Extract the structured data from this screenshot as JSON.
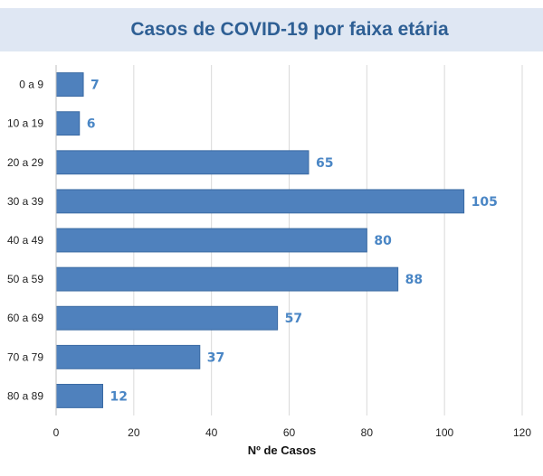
{
  "chart_data": {
    "type": "bar",
    "orientation": "horizontal",
    "title": "Casos de COVID-19 por faixa etária",
    "xlabel": "Nº de Casos",
    "ylabel": "",
    "categories": [
      "0 a 9",
      "10 a 19",
      "20 a 29",
      "30 a 39",
      "40 a 49",
      "50 a 59",
      "60 a 69",
      "70 a 79",
      "80 a 89"
    ],
    "values": [
      7,
      6,
      65,
      105,
      80,
      88,
      57,
      37,
      12
    ],
    "xlim": [
      0,
      120
    ],
    "xticks": [
      0,
      20,
      40,
      60,
      80,
      100,
      120
    ],
    "grid": true,
    "legend": "none",
    "colors": {
      "bar": "#4f81bd",
      "bar_border": "#3a6aa3",
      "data_label": "#4a86c5",
      "title": "#2e5f94",
      "title_background": "#dfe7f3",
      "grid": "#d9d9d9"
    }
  }
}
